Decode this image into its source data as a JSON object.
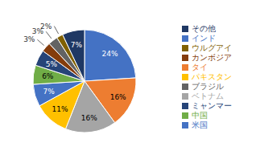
{
  "chart_data": {
    "type": "pie",
    "categories": [
      "インド",
      "タイ",
      "ベトナム",
      "パキスタン",
      "米国",
      "中国",
      "ミャンマー",
      "カンボジア",
      "ブラジル",
      "ウルグアイ",
      "その他"
    ],
    "values": [
      24,
      16,
      16,
      11,
      7,
      6,
      5,
      3,
      3,
      2,
      7
    ],
    "value_labels": [
      "24%",
      "16%",
      "16%",
      "11%",
      "7%",
      "6%",
      "5%",
      "3%",
      "3%",
      "2%",
      "7%"
    ],
    "colors": [
      "#4472C4",
      "#ED7D31",
      "#A5A5A5",
      "#FFC000",
      "#4472C4",
      "#70AD47",
      "#264478",
      "#843C0C",
      "#636363",
      "#806000",
      "#1F3864"
    ],
    "data_labels": true,
    "legend": "right"
  }
}
